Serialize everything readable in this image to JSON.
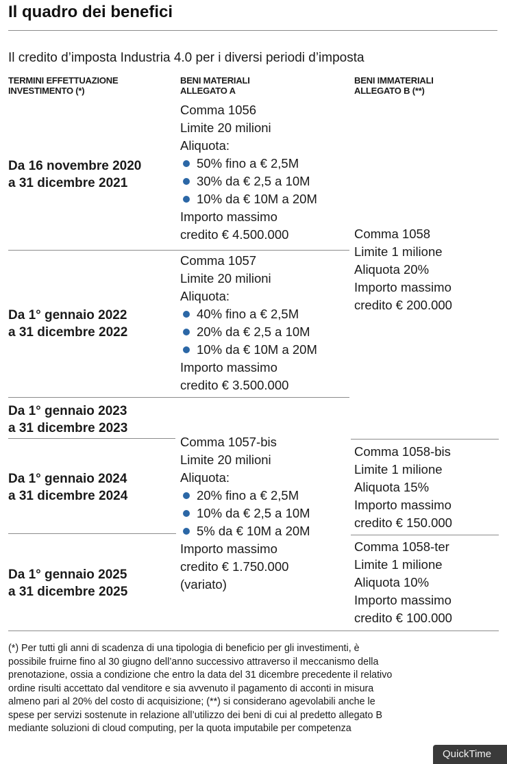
{
  "title": "Il quadro dei benefici",
  "subtitle": "Il credito d’imposta Industria 4.0 per i diversi periodi d’imposta",
  "columns": {
    "col1": [
      "TERMINI EFFETTUAZIONE",
      "INVESTIMENTO (*)"
    ],
    "col2": [
      "BENI MATERIALI",
      "ALLEGATO A"
    ],
    "col3": [
      "BENI IMMATERIALI",
      "ALLEGATO B (**)"
    ]
  },
  "periods": [
    [
      "Da 16 novembre 2020",
      "a 31 dicembre 2021"
    ],
    [
      "Da 1° gennaio 2022",
      "a 31 dicembre 2022"
    ],
    [
      "Da 1° gennaio 2023",
      "a 31 dicembre 2023"
    ],
    [
      "Da 1° gennaio 2024",
      "a 31 dicembre 2024"
    ],
    [
      "Da 1° gennaio 2025",
      "a 31 dicembre 2025"
    ]
  ],
  "materiali": [
    {
      "comma": "Comma 1056",
      "limite": "Limite 20 milioni",
      "aliquota": "Aliquota:",
      "bullets": [
        "50% fino a € 2,5M",
        "30% da € 2,5 a 10M",
        "10% da € 10M a 20M"
      ],
      "importo": [
        "Importo massimo",
        "credito € 4.500.000"
      ]
    },
    {
      "comma": "Comma 1057",
      "limite": "Limite 20 milioni",
      "aliquota": "Aliquota:",
      "bullets": [
        "40% fino a € 2,5M",
        "20% da € 2,5 a 10M",
        "10% da € 10M a 20M"
      ],
      "importo": [
        "Importo massimo",
        "credito  € 3.500.000"
      ]
    },
    {
      "comma": "Comma 1057-bis",
      "limite": "Limite 20 milioni",
      "aliquota": "Aliquota:",
      "bullets": [
        "20% fino a € 2,5M",
        "10% da € 2,5 a 10M",
        "5% da € 10M a 20M"
      ],
      "importo": [
        "Importo massimo",
        "credito  € 1.750.000",
        "(variato)"
      ]
    }
  ],
  "immateriali": [
    {
      "lines": [
        "Comma 1058",
        "Limite 1 milione",
        "Aliquota 20%",
        "Importo massimo",
        "credito € 200.000"
      ]
    },
    {
      "lines": [
        "Comma 1058-bis",
        "Limite 1 milione",
        "Aliquota 15%",
        "Importo massimo",
        "credito € 150.000"
      ]
    },
    {
      "lines": [
        "Comma 1058-ter",
        "Limite 1 milione",
        "Aliquota 10%",
        "Importo massimo",
        "credito € 100.000"
      ]
    }
  ],
  "footnote": [
    "(*) Per tutti gli anni di scadenza di una tipologia di beneficio per gli investimenti, è",
    "possibile fruirne fino al 30 giugno dell’anno successivo attraverso il meccanismo della",
    "prenotazione, ossia a condizione che entro la data del 31 dicembre precedente il relativo",
    "ordine risulti accettato dal venditore e sia avvenuto il pagamento di acconti in misura",
    "almeno pari al 20% del costo di acquisizione; (**) si considerano agevolabili anche le",
    "spese per servizi sostenute in relazione all’utilizzo dei beni di cui al predetto allegato B",
    "mediante soluzioni di cloud computing, per la quota imputabile per competenza"
  ],
  "overlay": {
    "quicktime_label": "QuickTime"
  }
}
